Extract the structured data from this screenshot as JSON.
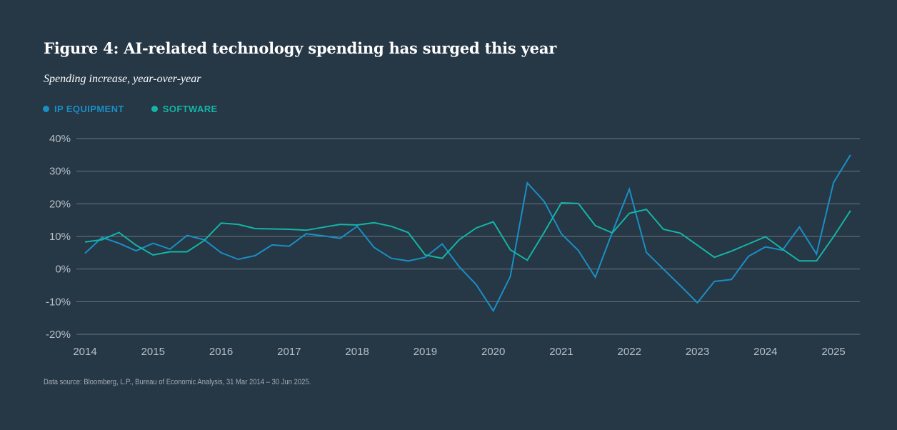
{
  "title": "Figure 4: AI-related technology spending has surged this year",
  "subtitle": "Spending increase, year-over-year",
  "source": "Data source: Bloomberg, L.P., Bureau of Economic Analysis, 31 Mar 2014 – 30 Jun 2025.",
  "legend": [
    {
      "label": "IP EQUIPMENT",
      "color": "#1a8fc4"
    },
    {
      "label": "SOFTWARE",
      "color": "#14b5a5"
    }
  ],
  "chart_data": {
    "type": "line",
    "title": "Figure 4: AI-related technology spending has surged this year",
    "subtitle": "Spending increase, year-over-year",
    "xlabel": "",
    "ylabel": "",
    "x_start": "2014 Q1",
    "x_frequency": "quarterly",
    "xticks": [
      "2014",
      "2015",
      "2016",
      "2017",
      "2018",
      "2019",
      "2020",
      "2021",
      "2022",
      "2023",
      "2024",
      "2025"
    ],
    "yticks": [
      "40%",
      "30%",
      "20%",
      "10%",
      "0%",
      "-10%",
      "-20%"
    ],
    "ytick_values": [
      40,
      30,
      20,
      10,
      0,
      -10,
      -20
    ],
    "ylim": [
      -20,
      40
    ],
    "grid": true,
    "legend_position": "top-left",
    "x": [
      "2014Q1",
      "2014Q2",
      "2014Q3",
      "2014Q4",
      "2015Q1",
      "2015Q2",
      "2015Q3",
      "2015Q4",
      "2016Q1",
      "2016Q2",
      "2016Q3",
      "2016Q4",
      "2017Q1",
      "2017Q2",
      "2017Q3",
      "2017Q4",
      "2018Q1",
      "2018Q2",
      "2018Q3",
      "2018Q4",
      "2019Q1",
      "2019Q2",
      "2019Q3",
      "2019Q4",
      "2020Q1",
      "2020Q2",
      "2020Q3",
      "2020Q4",
      "2021Q1",
      "2021Q2",
      "2021Q3",
      "2021Q4",
      "2022Q1",
      "2022Q2",
      "2022Q3",
      "2022Q4",
      "2023Q1",
      "2023Q2",
      "2023Q3",
      "2023Q4",
      "2024Q1",
      "2024Q2",
      "2024Q3",
      "2024Q4",
      "2025Q1",
      "2025Q2"
    ],
    "series": [
      {
        "name": "IP EQUIPMENT",
        "color": "#1a8fc4",
        "values": [
          4.8,
          9.7,
          7.9,
          5.6,
          7.9,
          6.1,
          10.3,
          9.0,
          5.0,
          3.0,
          4.1,
          7.4,
          7.0,
          10.8,
          10.2,
          9.4,
          13.1,
          6.6,
          3.3,
          2.5,
          3.6,
          7.7,
          0.7,
          -4.8,
          -12.8,
          -2.3,
          26.4,
          20.7,
          10.8,
          5.7,
          -2.5,
          11.3,
          24.5,
          5.1,
          0.0,
          -5.1,
          -10.3,
          -3.8,
          -3.2,
          3.9,
          6.8,
          5.8,
          12.9,
          4.6,
          26.5,
          35.0
        ]
      },
      {
        "name": "SOFTWARE",
        "color": "#14b5a5",
        "values": [
          8.3,
          9.0,
          11.2,
          7.3,
          4.3,
          5.3,
          5.3,
          8.7,
          14.1,
          13.7,
          12.4,
          12.3,
          12.2,
          11.9,
          12.8,
          13.7,
          13.5,
          14.2,
          13.1,
          11.2,
          4.3,
          3.3,
          9.0,
          12.6,
          14.5,
          5.9,
          2.7,
          11.3,
          20.3,
          20.1,
          13.3,
          11.1,
          17.1,
          18.3,
          12.2,
          11.0,
          7.3,
          3.6,
          5.5,
          7.7,
          9.9,
          6.1,
          2.5,
          2.5,
          9.9,
          17.9
        ]
      }
    ]
  }
}
